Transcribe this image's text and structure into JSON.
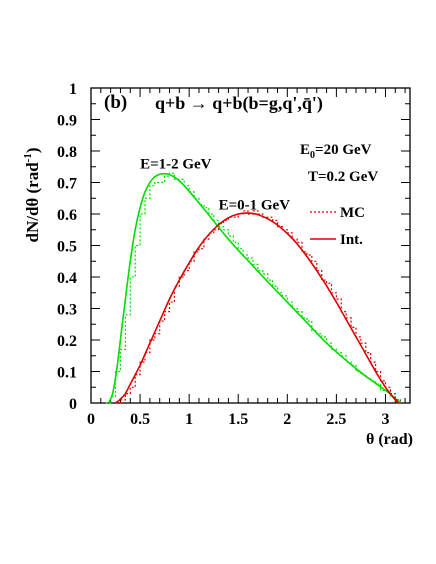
{
  "chart_data": {
    "type": "line",
    "panel_label": "(b)",
    "title": "q+b → q+b(b=g,q',q̄')",
    "xlabel": "θ (rad)",
    "ylabel": "dN/dθ (rad",
    "ylabel_sup": "-1",
    "ylabel_close": ")",
    "xlim": [
      0,
      3.25
    ],
    "ylim": [
      0,
      1.0
    ],
    "x_ticks": [
      0,
      0.5,
      1,
      1.5,
      2,
      2.5,
      3
    ],
    "x_tick_labels": [
      "0",
      "0.5",
      "1",
      "1.5",
      "2",
      "2.5",
      "3"
    ],
    "y_ticks": [
      0,
      0.1,
      0.2,
      0.3,
      0.4,
      0.5,
      0.6,
      0.7,
      0.8,
      0.9,
      1
    ],
    "y_tick_labels": [
      "0",
      "0.1",
      "0.2",
      "0.3",
      "0.4",
      "0.5",
      "0.6",
      "0.7",
      "0.8",
      "0.9",
      "1"
    ],
    "info": {
      "e0_main": "E",
      "e0_sub": "0",
      "e0_rest": "=20 GeV",
      "temperature": "T=0.2 GeV"
    },
    "legend": [
      {
        "label": "MC",
        "style": "dotted",
        "color": "#dd0000"
      },
      {
        "label": "Int.",
        "style": "solid",
        "color": "#dd0000"
      }
    ],
    "series": [
      {
        "name": "E=1-2 GeV",
        "color": "#00dd00",
        "label_pos": [
          0.5,
          0.745
        ],
        "int": {
          "x": [
            0.18,
            0.22,
            0.26,
            0.3,
            0.35,
            0.4,
            0.45,
            0.5,
            0.55,
            0.6,
            0.65,
            0.7,
            0.75,
            0.8,
            0.85,
            0.9,
            0.95,
            1.0,
            1.1,
            1.2,
            1.3,
            1.4,
            1.5,
            1.6,
            1.8,
            2.0,
            2.2,
            2.4,
            2.6,
            2.8,
            3.0,
            3.1,
            3.14
          ],
          "y": [
            0.0,
            0.03,
            0.1,
            0.2,
            0.33,
            0.45,
            0.55,
            0.62,
            0.67,
            0.7,
            0.718,
            0.726,
            0.728,
            0.725,
            0.717,
            0.705,
            0.69,
            0.672,
            0.635,
            0.597,
            0.558,
            0.52,
            0.485,
            0.452,
            0.385,
            0.32,
            0.255,
            0.19,
            0.135,
            0.085,
            0.04,
            0.015,
            0.0
          ]
        },
        "mc": {
          "x": [
            0.15,
            0.2,
            0.25,
            0.3,
            0.35,
            0.4,
            0.45,
            0.5,
            0.55,
            0.6,
            0.65,
            0.7,
            0.75,
            0.8,
            0.85,
            0.9,
            0.95,
            1.0,
            1.05,
            1.1,
            1.15,
            1.2,
            1.25,
            1.3,
            1.35,
            1.4,
            1.45,
            1.5,
            1.55,
            1.6,
            1.65,
            1.7,
            1.75,
            1.8,
            1.85,
            1.9,
            1.95,
            2.0,
            2.05,
            2.1,
            2.15,
            2.2,
            2.25,
            2.3,
            2.35,
            2.4,
            2.45,
            2.5,
            2.55,
            2.6,
            2.65,
            2.7,
            2.75,
            2.8,
            2.85,
            2.9,
            2.95,
            3.0,
            3.05,
            3.1,
            3.15
          ],
          "y": [
            0.0,
            0.02,
            0.1,
            0.17,
            0.28,
            0.4,
            0.5,
            0.6,
            0.65,
            0.69,
            0.7,
            0.7,
            0.72,
            0.73,
            0.71,
            0.71,
            0.69,
            0.67,
            0.65,
            0.63,
            0.62,
            0.6,
            0.58,
            0.56,
            0.55,
            0.53,
            0.51,
            0.49,
            0.47,
            0.46,
            0.44,
            0.42,
            0.41,
            0.39,
            0.37,
            0.35,
            0.34,
            0.32,
            0.3,
            0.29,
            0.27,
            0.26,
            0.23,
            0.22,
            0.21,
            0.19,
            0.17,
            0.16,
            0.15,
            0.13,
            0.12,
            0.1,
            0.09,
            0.08,
            0.07,
            0.06,
            0.04,
            0.04,
            0.02,
            0.01,
            0.0
          ]
        }
      },
      {
        "name": "E=0-1 GeV",
        "color": "#dd0000",
        "label_pos": [
          1.3,
          0.615
        ],
        "int": {
          "x": [
            0.25,
            0.3,
            0.35,
            0.4,
            0.5,
            0.6,
            0.7,
            0.8,
            0.9,
            1.0,
            1.1,
            1.2,
            1.3,
            1.4,
            1.5,
            1.6,
            1.7,
            1.8,
            1.9,
            2.0,
            2.1,
            2.2,
            2.3,
            2.4,
            2.5,
            2.6,
            2.7,
            2.8,
            2.9,
            3.0,
            3.1,
            3.14
          ],
          "y": [
            0.0,
            0.012,
            0.03,
            0.06,
            0.12,
            0.19,
            0.26,
            0.33,
            0.39,
            0.445,
            0.495,
            0.535,
            0.566,
            0.588,
            0.6,
            0.603,
            0.598,
            0.585,
            0.565,
            0.538,
            0.505,
            0.465,
            0.42,
            0.372,
            0.32,
            0.265,
            0.21,
            0.155,
            0.1,
            0.05,
            0.01,
            0.0
          ]
        },
        "mc": {
          "x": [
            0.25,
            0.3,
            0.35,
            0.4,
            0.45,
            0.5,
            0.55,
            0.6,
            0.65,
            0.7,
            0.75,
            0.8,
            0.85,
            0.9,
            0.95,
            1.0,
            1.05,
            1.1,
            1.15,
            1.2,
            1.25,
            1.3,
            1.35,
            1.4,
            1.45,
            1.5,
            1.55,
            1.6,
            1.65,
            1.7,
            1.75,
            1.8,
            1.85,
            1.9,
            1.95,
            2.0,
            2.05,
            2.1,
            2.15,
            2.2,
            2.25,
            2.3,
            2.35,
            2.4,
            2.45,
            2.5,
            2.55,
            2.6,
            2.65,
            2.7,
            2.75,
            2.8,
            2.85,
            2.9,
            2.95,
            3.0,
            3.05,
            3.1,
            3.15
          ],
          "y": [
            0.0,
            0.01,
            0.03,
            0.05,
            0.09,
            0.13,
            0.16,
            0.2,
            0.22,
            0.26,
            0.29,
            0.32,
            0.37,
            0.4,
            0.42,
            0.45,
            0.48,
            0.49,
            0.52,
            0.54,
            0.55,
            0.57,
            0.58,
            0.59,
            0.59,
            0.6,
            0.61,
            0.6,
            0.61,
            0.6,
            0.59,
            0.59,
            0.58,
            0.56,
            0.55,
            0.54,
            0.52,
            0.51,
            0.48,
            0.47,
            0.45,
            0.42,
            0.39,
            0.38,
            0.35,
            0.33,
            0.29,
            0.27,
            0.24,
            0.21,
            0.19,
            0.16,
            0.13,
            0.1,
            0.07,
            0.05,
            0.03,
            0.01,
            0.0
          ]
        }
      }
    ]
  }
}
